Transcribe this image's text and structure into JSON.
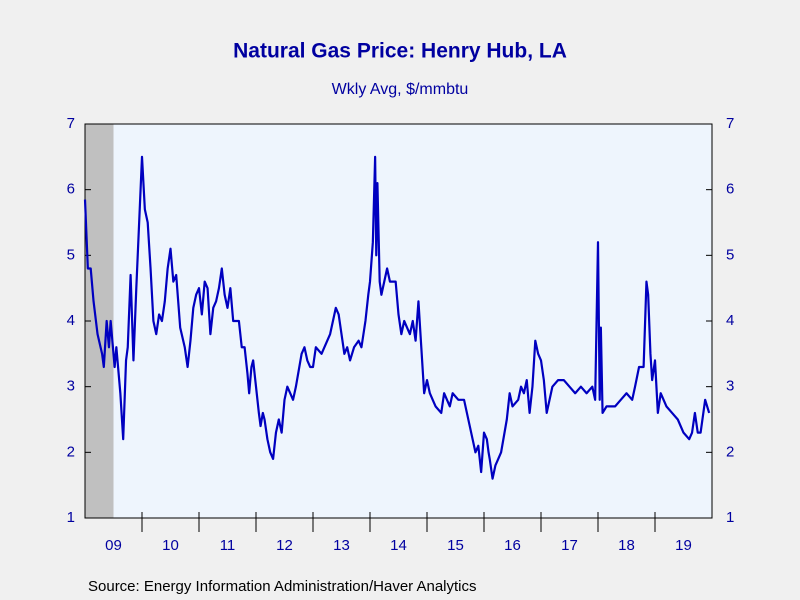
{
  "chart_data": {
    "type": "line",
    "title": "Natural Gas Price: Henry Hub, LA",
    "subtitle": "Wkly Avg, $/mmbtu",
    "source": "Source:  Energy Information Administration/Haver Analytics",
    "xlim": [
      2009,
      2020
    ],
    "xticks": [
      {
        "value": 2009.5,
        "label": "09"
      },
      {
        "value": 2010.5,
        "label": "10"
      },
      {
        "value": 2011.5,
        "label": "11"
      },
      {
        "value": 2012.5,
        "label": "12"
      },
      {
        "value": 2013.5,
        "label": "13"
      },
      {
        "value": 2014.5,
        "label": "14"
      },
      {
        "value": 2015.5,
        "label": "15"
      },
      {
        "value": 2016.5,
        "label": "16"
      },
      {
        "value": 2017.5,
        "label": "17"
      },
      {
        "value": 2018.5,
        "label": "18"
      },
      {
        "value": 2019.5,
        "label": "19"
      }
    ],
    "xminor": [
      2010,
      2011,
      2012,
      2013,
      2014,
      2015,
      2016,
      2017,
      2018,
      2019
    ],
    "ylim": [
      1,
      7
    ],
    "yticks": [
      1,
      2,
      3,
      4,
      5,
      6,
      7
    ],
    "y2lim": [
      1,
      7
    ],
    "y2ticks": [
      1,
      2,
      3,
      4,
      5,
      6,
      7
    ],
    "recession": [
      2009,
      2009.5
    ],
    "series": [
      {
        "color": "#0000c0",
        "x": [
          2009.0,
          2009.05,
          2009.1,
          2009.15,
          2009.22,
          2009.3,
          2009.33,
          2009.38,
          2009.42,
          2009.45,
          2009.52,
          2009.55,
          2009.62,
          2009.67,
          2009.72,
          2009.75,
          2009.8,
          2009.85,
          2009.9,
          2009.95,
          2010.0,
          2010.05,
          2010.1,
          2010.15,
          2010.2,
          2010.25,
          2010.3,
          2010.35,
          2010.4,
          2010.45,
          2010.5,
          2010.55,
          2010.6,
          2010.67,
          2010.75,
          2010.8,
          2010.85,
          2010.9,
          2010.95,
          2011.0,
          2011.05,
          2011.1,
          2011.15,
          2011.2,
          2011.25,
          2011.3,
          2011.35,
          2011.4,
          2011.45,
          2011.5,
          2011.55,
          2011.6,
          2011.7,
          2011.75,
          2011.8,
          2011.85,
          2011.88,
          2011.92,
          2011.95,
          2012.0,
          2012.05,
          2012.08,
          2012.12,
          2012.15,
          2012.2,
          2012.25,
          2012.3,
          2012.35,
          2012.4,
          2012.45,
          2012.5,
          2012.55,
          2012.6,
          2012.65,
          2012.7,
          2012.8,
          2012.85,
          2012.9,
          2012.95,
          2013.0,
          2013.05,
          2013.15,
          2013.3,
          2013.4,
          2013.45,
          2013.5,
          2013.55,
          2013.6,
          2013.65,
          2013.72,
          2013.8,
          2013.85,
          2013.92,
          2013.97,
          2014.0,
          2014.05,
          2014.09,
          2014.11,
          2014.13,
          2014.17,
          2014.2,
          2014.25,
          2014.3,
          2014.35,
          2014.45,
          2014.5,
          2014.55,
          2014.6,
          2014.7,
          2014.75,
          2014.8,
          2014.85,
          2014.9,
          2014.95,
          2015.0,
          2015.05,
          2015.1,
          2015.15,
          2015.25,
          2015.3,
          2015.4,
          2015.45,
          2015.55,
          2015.65,
          2015.7,
          2015.75,
          2015.8,
          2015.85,
          2015.9,
          2015.95,
          2016.0,
          2016.05,
          2016.08,
          2016.1,
          2016.15,
          2016.2,
          2016.25,
          2016.3,
          2016.4,
          2016.45,
          2016.5,
          2016.6,
          2016.65,
          2016.7,
          2016.75,
          2016.8,
          2016.85,
          2016.9,
          2016.95,
          2017.0,
          2017.05,
          2017.1,
          2017.2,
          2017.3,
          2017.4,
          2017.5,
          2017.6,
          2017.7,
          2017.8,
          2017.9,
          2017.95,
          2018.0,
          2018.03,
          2018.05,
          2018.08,
          2018.15,
          2018.3,
          2018.4,
          2018.5,
          2018.6,
          2018.65,
          2018.72,
          2018.8,
          2018.85,
          2018.88,
          2018.92,
          2018.95,
          2019.0,
          2019.05,
          2019.1,
          2019.2,
          2019.3,
          2019.4,
          2019.5,
          2019.6,
          2019.65,
          2019.7,
          2019.75,
          2019.8,
          2019.88,
          2019.95
        ],
        "values": [
          5.85,
          4.8,
          4.8,
          4.3,
          3.8,
          3.5,
          3.3,
          4.0,
          3.6,
          4.0,
          3.3,
          3.6,
          2.9,
          2.2,
          3.4,
          3.6,
          4.7,
          3.4,
          4.5,
          5.5,
          6.5,
          5.7,
          5.5,
          4.8,
          4.0,
          3.8,
          4.1,
          4.0,
          4.3,
          4.8,
          5.1,
          4.6,
          4.7,
          3.9,
          3.6,
          3.3,
          3.7,
          4.2,
          4.4,
          4.5,
          4.1,
          4.6,
          4.5,
          3.8,
          4.2,
          4.3,
          4.5,
          4.8,
          4.4,
          4.2,
          4.5,
          4.0,
          4.0,
          3.6,
          3.6,
          3.2,
          2.9,
          3.3,
          3.4,
          3.0,
          2.6,
          2.4,
          2.6,
          2.5,
          2.2,
          2.0,
          1.9,
          2.3,
          2.5,
          2.3,
          2.8,
          3.0,
          2.9,
          2.8,
          3.0,
          3.5,
          3.6,
          3.4,
          3.3,
          3.3,
          3.6,
          3.5,
          3.8,
          4.2,
          4.1,
          3.8,
          3.5,
          3.6,
          3.4,
          3.6,
          3.7,
          3.6,
          4.0,
          4.4,
          4.6,
          5.2,
          6.5,
          5.0,
          6.1,
          4.6,
          4.4,
          4.6,
          4.8,
          4.6,
          4.6,
          4.1,
          3.8,
          4.0,
          3.8,
          4.0,
          3.7,
          4.3,
          3.6,
          2.9,
          3.1,
          2.9,
          2.8,
          2.7,
          2.6,
          2.9,
          2.7,
          2.9,
          2.8,
          2.8,
          2.6,
          2.4,
          2.2,
          2.0,
          2.1,
          1.7,
          2.3,
          2.2,
          2.0,
          1.9,
          1.6,
          1.8,
          1.9,
          2.0,
          2.5,
          2.9,
          2.7,
          2.8,
          3.0,
          2.9,
          3.1,
          2.6,
          3.0,
          3.7,
          3.5,
          3.4,
          3.1,
          2.6,
          3.0,
          3.1,
          3.1,
          3.0,
          2.9,
          3.0,
          2.9,
          3.0,
          2.8,
          5.2,
          2.8,
          3.9,
          2.6,
          2.7,
          2.7,
          2.8,
          2.9,
          2.8,
          3.0,
          3.3,
          3.3,
          4.6,
          4.4,
          3.5,
          3.1,
          3.4,
          2.6,
          2.9,
          2.7,
          2.6,
          2.5,
          2.3,
          2.2,
          2.3,
          2.6,
          2.3,
          2.3,
          2.8,
          2.6
        ]
      }
    ]
  }
}
